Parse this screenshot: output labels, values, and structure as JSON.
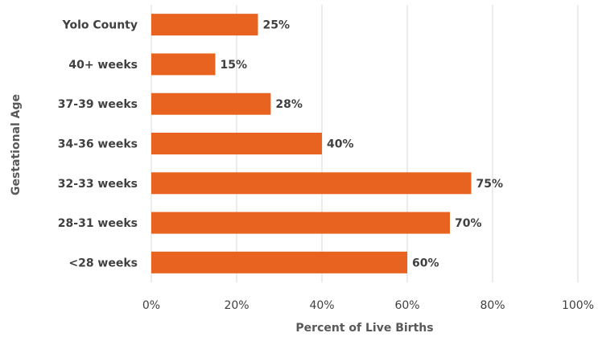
{
  "chart_data": {
    "type": "bar",
    "orientation": "horizontal",
    "categories": [
      "Yolo County",
      "40+ weeks",
      "37-39 weeks",
      "34-36 weeks",
      "32-33 weeks",
      "28-31 weeks",
      "<28 weeks"
    ],
    "values": [
      25,
      15,
      28,
      40,
      75,
      70,
      60
    ],
    "data_labels": [
      "25%",
      "15%",
      "28%",
      "40%",
      "75%",
      "70%",
      "60%"
    ],
    "title": "",
    "xlabel": "Percent of Live Births",
    "ylabel": "Gestational Age",
    "xlim": [
      0,
      100
    ],
    "x_ticks": [
      0,
      20,
      40,
      60,
      80,
      100
    ],
    "x_tick_labels": [
      "0%",
      "20%",
      "40%",
      "60%",
      "80%",
      "100%"
    ],
    "grid": true,
    "legend": "none",
    "bar_color": "#E8631F",
    "grid_color": "#D9D9D9"
  }
}
